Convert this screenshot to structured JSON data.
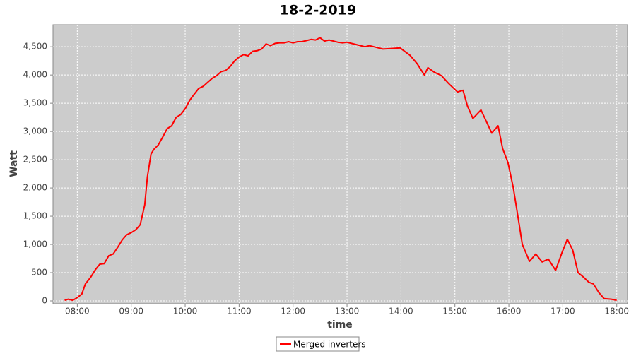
{
  "chart_data": {
    "type": "line",
    "title": "18-2-2019",
    "x_label": "time",
    "y_label": "Watt",
    "x": [
      "07:46",
      "07:50",
      "07:55",
      "08:00",
      "08:05",
      "08:09",
      "08:15",
      "08:20",
      "08:25",
      "08:30",
      "08:35",
      "08:40",
      "08:45",
      "08:50",
      "08:55",
      "09:00",
      "09:05",
      "09:10",
      "09:15",
      "09:18",
      "09:22",
      "09:25",
      "09:30",
      "09:35",
      "09:40",
      "09:45",
      "09:50",
      "09:55",
      "10:00",
      "10:05",
      "10:10",
      "10:15",
      "10:20",
      "10:25",
      "10:30",
      "10:35",
      "10:40",
      "10:45",
      "10:50",
      "10:55",
      "11:00",
      "11:05",
      "11:10",
      "11:15",
      "11:20",
      "11:25",
      "11:30",
      "11:35",
      "11:40",
      "11:45",
      "11:50",
      "11:55",
      "12:00",
      "12:05",
      "12:10",
      "12:15",
      "12:20",
      "12:25",
      "12:30",
      "12:35",
      "12:40",
      "12:45",
      "12:50",
      "12:55",
      "13:00",
      "13:10",
      "13:20",
      "13:25",
      "13:30",
      "13:40",
      "13:50",
      "13:59",
      "14:10",
      "14:18",
      "14:26",
      "14:30",
      "14:37",
      "14:45",
      "14:53",
      "15:03",
      "15:09",
      "15:14",
      "15:20",
      "15:29",
      "15:41",
      "15:48",
      "15:53",
      "15:59",
      "16:05",
      "16:11",
      "16:15",
      "16:23",
      "16:30",
      "16:37",
      "16:44",
      "16:52",
      "16:59",
      "17:05",
      "17:11",
      "17:17",
      "17:23",
      "17:29",
      "17:34",
      "17:40",
      "17:46",
      "17:54",
      "18:00"
    ],
    "series": [
      {
        "name": "Merged inverters",
        "color": "#ff0000",
        "values": [
          10,
          30,
          10,
          60,
          120,
          300,
          420,
          550,
          650,
          660,
          800,
          830,
          950,
          1080,
          1170,
          1210,
          1260,
          1350,
          1700,
          2200,
          2600,
          2680,
          2760,
          2900,
          3050,
          3100,
          3250,
          3300,
          3400,
          3550,
          3660,
          3760,
          3800,
          3870,
          3940,
          3990,
          4060,
          4080,
          4150,
          4250,
          4320,
          4360,
          4340,
          4420,
          4430,
          4460,
          4550,
          4520,
          4560,
          4570,
          4570,
          4590,
          4570,
          4590,
          4590,
          4610,
          4630,
          4620,
          4660,
          4600,
          4620,
          4600,
          4580,
          4570,
          4580,
          4540,
          4500,
          4520,
          4500,
          4460,
          4470,
          4480,
          4350,
          4200,
          4000,
          4130,
          4050,
          3990,
          3850,
          3700,
          3730,
          3450,
          3230,
          3380,
          2970,
          3100,
          2700,
          2450,
          2000,
          1400,
          1000,
          700,
          830,
          690,
          740,
          540,
          850,
          1090,
          900,
          500,
          420,
          330,
          300,
          150,
          40,
          30,
          10
        ]
      }
    ],
    "xlim": [
      "07:33",
      "18:12"
    ],
    "xticks": [
      "08:00",
      "09:00",
      "10:00",
      "11:00",
      "12:00",
      "13:00",
      "14:00",
      "15:00",
      "16:00",
      "17:00",
      "18:00"
    ],
    "ylim": [
      -50,
      4890
    ],
    "yticks": [
      0,
      500,
      {
        "value": 1000,
        "label": "1,000"
      },
      {
        "value": 1500,
        "label": "1,500"
      },
      {
        "value": 2000,
        "label": "2,000"
      },
      {
        "value": 2500,
        "label": "2,500"
      },
      {
        "value": 3000,
        "label": "3,000"
      },
      {
        "value": 3500,
        "label": "3,500"
      },
      {
        "value": 4000,
        "label": "4,000"
      },
      {
        "value": 4500,
        "label": "4,500"
      }
    ],
    "grid": true
  }
}
